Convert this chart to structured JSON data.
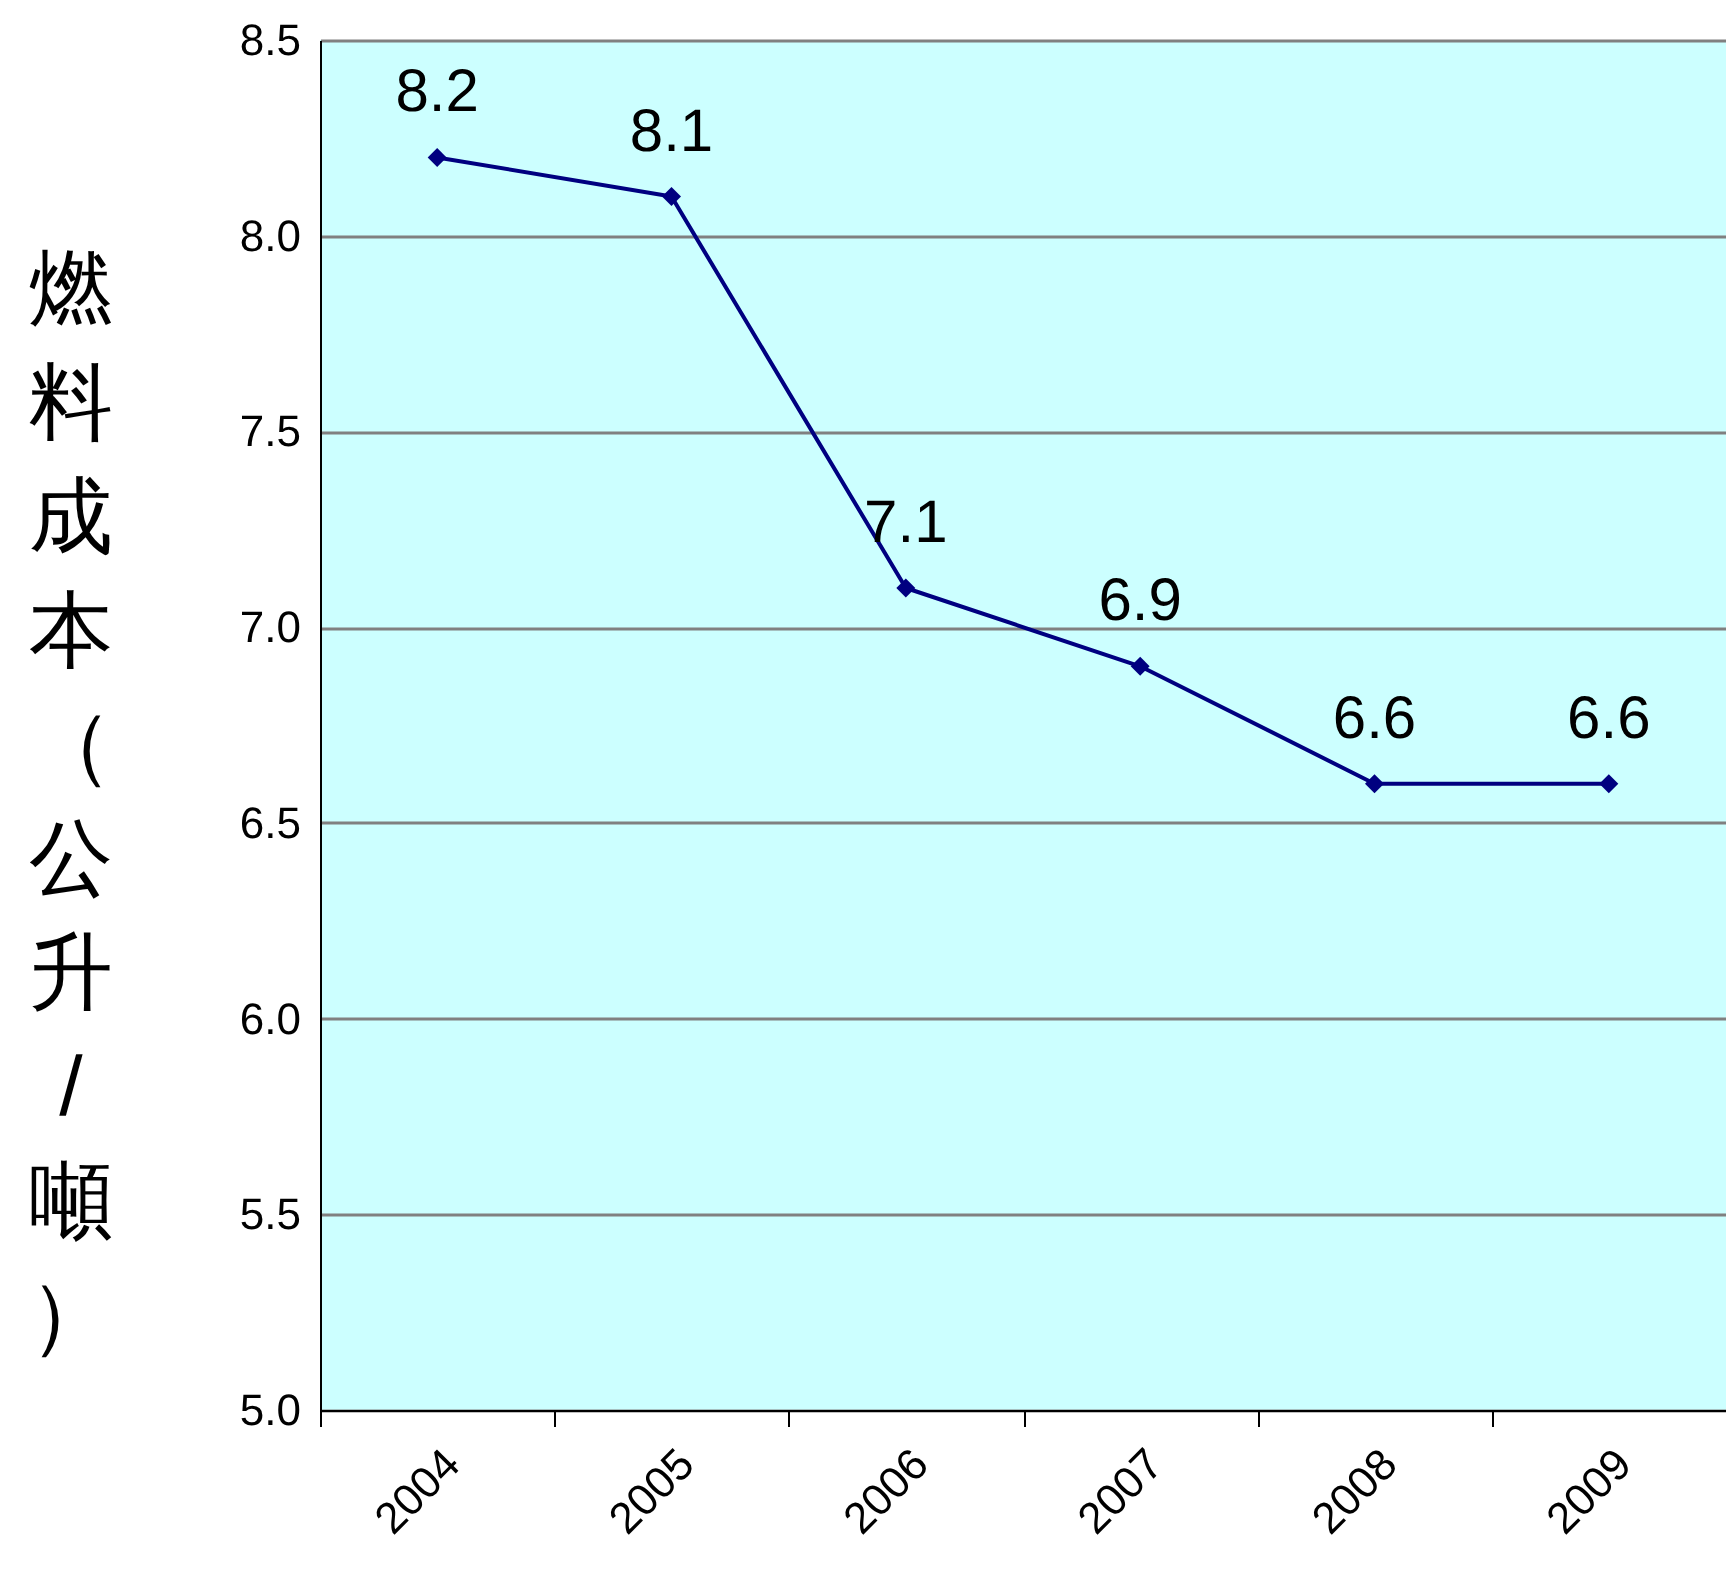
{
  "chart_data": {
    "type": "line",
    "ylabel": "燃料成本（公升/噸）",
    "categories": [
      "2004",
      "2005",
      "2006",
      "2007",
      "2008",
      "2009"
    ],
    "series": [
      {
        "color": "#000080",
        "values": [
          8.2,
          8.1,
          7.1,
          6.9,
          6.6,
          6.6
        ]
      }
    ],
    "ylim": [
      5,
      8.5
    ],
    "yticks": [
      "5.0",
      "5.5",
      "6.0",
      "6.5",
      "7.0",
      "7.5",
      "8.0",
      "8.5"
    ],
    "grid": "y",
    "marker": "diamond",
    "data_labels": true
  }
}
